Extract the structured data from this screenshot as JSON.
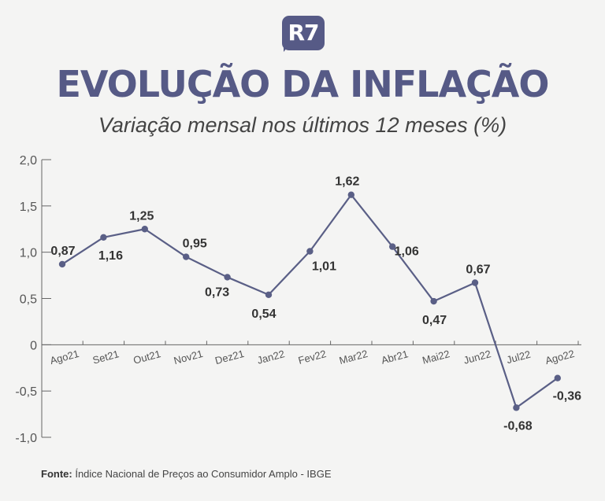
{
  "brand": {
    "logo_text": "R7"
  },
  "title": "EVOLUÇÃO DA INFLAÇÃO",
  "subtitle": "Variação mensal nos últimos 12 meses (%)",
  "footer": {
    "label": "Fonte:",
    "text": "Índice Nacional de Preços ao Consumidor Amplo - IBGE"
  },
  "colors": {
    "accent": "#565a86",
    "line": "#5a5f86",
    "axis": "#666666",
    "text": "#333333"
  },
  "chart_data": {
    "type": "line",
    "categories": [
      "Ago21",
      "Set21",
      "Out21",
      "Nov21",
      "Dez21",
      "Jan22",
      "Fev22",
      "Mar22",
      "Abr21",
      "Mai22",
      "Jun22",
      "Jul22",
      "Ago22"
    ],
    "values": [
      0.87,
      1.16,
      1.25,
      0.95,
      0.73,
      0.54,
      1.01,
      1.62,
      1.06,
      0.47,
      0.67,
      -0.68,
      -0.36
    ],
    "value_labels": [
      "0,87",
      "1,16",
      "1,25",
      "0,95",
      "0,73",
      "0,54",
      "1,01",
      "1,62",
      "1,06",
      "0,47",
      "0,67",
      "-0,68",
      "-0,36"
    ],
    "y_ticks": [
      "2,0",
      "1,5",
      "1,0",
      "0,5",
      "0",
      "-0,5",
      "-1,0"
    ],
    "y_tick_values": [
      2.0,
      1.5,
      1.0,
      0.5,
      0,
      -0.5,
      -1.0
    ],
    "ylim": [
      -1.0,
      2.0
    ],
    "grid": false
  }
}
